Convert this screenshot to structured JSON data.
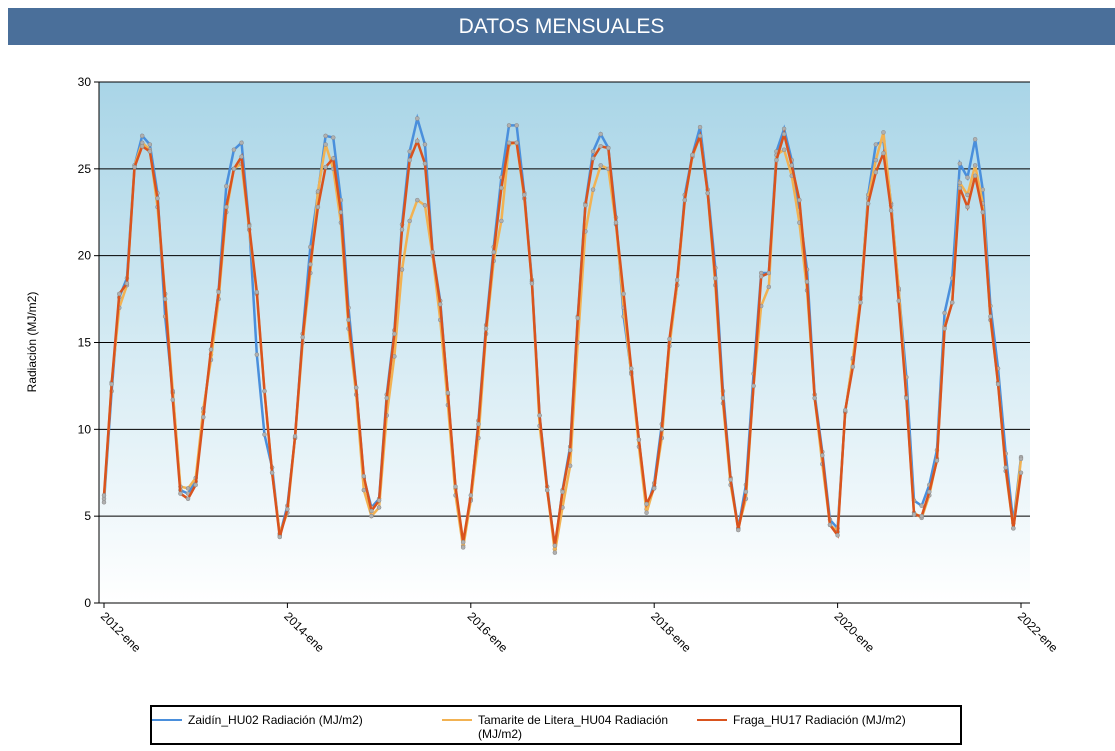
{
  "chart_data": {
    "type": "line",
    "title": "DATOS MENSUALES",
    "y_label": "Radiación (MJ/m2)",
    "categories": [
      "2012-ene",
      null,
      null,
      null,
      null,
      null,
      null,
      null,
      null,
      null,
      null,
      null,
      null,
      null,
      null,
      null,
      null,
      null,
      null,
      null,
      null,
      null,
      null,
      null,
      "2014-ene",
      null,
      null,
      null,
      null,
      null,
      null,
      null,
      null,
      null,
      null,
      null,
      null,
      null,
      null,
      null,
      null,
      null,
      null,
      null,
      null,
      null,
      null,
      null,
      "2016-ene",
      null,
      null,
      null,
      null,
      null,
      null,
      null,
      null,
      null,
      null,
      null,
      null,
      null,
      null,
      null,
      null,
      null,
      null,
      null,
      null,
      null,
      null,
      null,
      "2018-ene",
      null,
      null,
      null,
      null,
      null,
      null,
      null,
      null,
      null,
      null,
      null,
      null,
      null,
      null,
      null,
      null,
      null,
      null,
      null,
      null,
      null,
      null,
      null,
      "2020-ene",
      null,
      null,
      null,
      null,
      null,
      null,
      null,
      null,
      null,
      null,
      null,
      null,
      null,
      null,
      null,
      null,
      null,
      null,
      null,
      null,
      null,
      null,
      null,
      "2022-ene"
    ],
    "series": [
      {
        "name": "Zaidín_HU02 Radiación (MJ/m2)",
        "color": "#4a8fdc",
        "values": [
          5.8,
          12.2,
          17.6,
          18.7,
          25.2,
          26.9,
          26.4,
          23.6,
          16.5,
          12.1,
          6.5,
          6.3,
          7.0,
          11.0,
          14.3,
          18.0,
          24.0,
          26.1,
          26.5,
          21.8,
          14.3,
          9.7,
          7.8,
          3.9,
          5.6,
          9.5,
          15.5,
          20.5,
          23.6,
          26.9,
          26.8,
          23.2,
          17.0,
          12.4,
          7.2,
          5.5,
          6.0,
          12.0,
          15.7,
          21.8,
          26.0,
          27.9,
          26.4,
          20.2,
          17.4,
          12.0,
          6.6,
          3.3,
          6.0,
          10.5,
          16.0,
          20.5,
          24.5,
          27.5,
          27.5,
          23.6,
          18.6,
          10.8,
          6.7,
          3.1,
          6.5,
          9.0,
          16.5,
          23.0,
          26.0,
          27.0,
          26.2,
          22.2,
          16.5,
          13.3,
          9.4,
          5.4,
          6.9,
          10.3,
          15.0,
          18.3,
          23.5,
          25.8,
          27.4,
          23.8,
          19.3,
          12.2,
          7.2,
          4.3,
          6.8,
          13.2,
          19.0,
          19.0,
          26.0,
          27.3,
          25.5,
          22.6,
          19.2,
          12.0,
          8.7,
          4.8,
          4.3,
          11.0,
          14.0,
          17.5,
          23.5,
          26.4,
          26.6,
          23.0,
          18.0,
          13.0,
          5.9,
          5.6,
          6.8,
          8.8,
          16.7,
          18.7,
          25.3,
          24.5,
          26.7,
          23.8,
          17.1,
          13.5,
          8.6,
          4.6,
          8.4
        ]
      },
      {
        "name": "Tamarite de Litera_HU04 Radiación (MJ/m2)",
        "color": "#f2b252",
        "values": [
          6.0,
          12.7,
          17.0,
          18.3,
          25.2,
          26.5,
          26.1,
          22.8,
          17.8,
          12.2,
          6.7,
          6.6,
          7.2,
          11.2,
          14.0,
          17.5,
          22.5,
          25.0,
          25.3,
          21.5,
          17.8,
          12.2,
          7.5,
          4.0,
          5.2,
          9.5,
          15.0,
          19.0,
          23.7,
          26.4,
          25.0,
          21.9,
          15.8,
          12.0,
          6.5,
          5.0,
          5.5,
          10.8,
          14.2,
          19.2,
          22.0,
          23.2,
          22.9,
          20.0,
          16.3,
          11.4,
          6.2,
          3.2,
          5.9,
          9.5,
          15.5,
          19.7,
          22.0,
          26.4,
          26.5,
          23.3,
          18.5,
          10.2,
          6.5,
          2.9,
          5.5,
          7.9,
          15.0,
          21.4,
          23.8,
          25.2,
          25.0,
          21.8,
          17.0,
          13.2,
          9.0,
          5.2,
          6.7,
          9.5,
          14.8,
          18.3,
          23.2,
          25.7,
          26.9,
          23.6,
          18.3,
          11.5,
          6.8,
          4.3,
          6.0,
          12.5,
          17.1,
          18.2,
          25.8,
          26.1,
          24.6,
          21.9,
          18.0,
          11.8,
          8.0,
          4.5,
          4.1,
          11.0,
          14.1,
          17.6,
          23.3,
          25.5,
          27.1,
          22.9,
          18.1,
          11.9,
          5.2,
          4.9,
          6.2,
          8.3,
          15.9,
          17.3,
          24.2,
          23.5,
          25.2,
          23.0,
          16.3,
          12.7,
          7.6,
          4.3,
          8.3
        ]
      },
      {
        "name": "Fraga_HU17 Radiación (MJ/m2)",
        "color": "#d9531e",
        "values": [
          6.2,
          12.6,
          17.8,
          18.4,
          25.1,
          26.3,
          26.0,
          23.3,
          17.5,
          11.7,
          6.3,
          6.0,
          6.8,
          10.7,
          14.6,
          17.9,
          22.8,
          25.0,
          25.7,
          21.7,
          17.9,
          12.2,
          7.5,
          3.8,
          5.4,
          9.6,
          15.3,
          19.5,
          22.8,
          25.1,
          25.6,
          22.5,
          16.3,
          12.4,
          7.3,
          5.3,
          5.9,
          11.8,
          15.5,
          21.5,
          25.5,
          26.6,
          25.3,
          20.2,
          17.2,
          12.1,
          6.7,
          3.5,
          6.2,
          10.3,
          15.8,
          20.2,
          23.9,
          26.5,
          26.5,
          23.5,
          18.4,
          10.8,
          6.5,
          3.3,
          6.4,
          8.8,
          16.4,
          22.9,
          25.6,
          26.3,
          26.2,
          21.9,
          17.8,
          13.5,
          9.4,
          5.7,
          6.6,
          10.0,
          15.2,
          18.6,
          23.2,
          25.8,
          26.9,
          23.6,
          18.7,
          11.8,
          7.1,
          4.2,
          6.4,
          12.5,
          18.8,
          19.0,
          25.5,
          27.0,
          25.2,
          23.2,
          18.5,
          11.8,
          8.5,
          4.5,
          3.9,
          11.1,
          13.6,
          17.3,
          23.0,
          24.8,
          25.9,
          22.6,
          17.4,
          11.8,
          5.1,
          5.0,
          6.4,
          8.2,
          15.8,
          17.3,
          23.9,
          22.8,
          24.6,
          22.5,
          16.5,
          12.6,
          7.8,
          4.3,
          7.5
        ]
      }
    ],
    "ylim": [
      0,
      30
    ],
    "yticks": [
      0,
      5,
      10,
      15,
      20,
      25,
      30
    ],
    "grid": true,
    "legend": "bottom"
  }
}
